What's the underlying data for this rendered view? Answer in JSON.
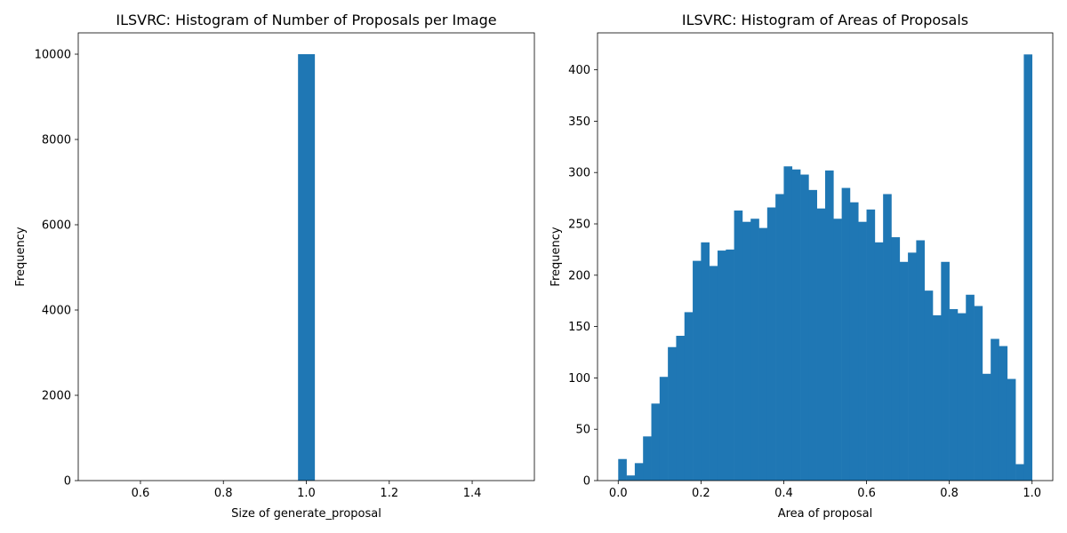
{
  "colors": {
    "bar": "#1f77b4",
    "axis": "#000000"
  },
  "chart_data": [
    {
      "type": "bar",
      "title": "ILSVRC: Histogram of Number of Proposals per Image",
      "xlabel": "Size of generate_proposal",
      "ylabel": "Frequency",
      "xlim": [
        0.45,
        1.55
      ],
      "ylim": [
        0,
        10500
      ],
      "xticks": [
        "0.6",
        "0.8",
        "1.0",
        "1.2",
        "1.4"
      ],
      "xtick_values": [
        0.6,
        0.8,
        1.0,
        1.2,
        1.4
      ],
      "yticks": [
        "0",
        "2000",
        "4000",
        "6000",
        "8000",
        "10000"
      ],
      "ytick_values": [
        0,
        2000,
        4000,
        6000,
        8000,
        10000
      ],
      "bins": [
        [
          0.98,
          1.02
        ]
      ],
      "values": [
        10000
      ],
      "grid": false
    },
    {
      "type": "bar",
      "title": "ILSVRC: Histogram of Areas of Proposals",
      "xlabel": "Area of proposal",
      "ylabel": "Frequency",
      "xlim": [
        -0.05,
        1.05
      ],
      "ylim": [
        0,
        436
      ],
      "xticks": [
        "0.0",
        "0.2",
        "0.4",
        "0.6",
        "0.8",
        "1.0"
      ],
      "xtick_values": [
        0.0,
        0.2,
        0.4,
        0.6,
        0.8,
        1.0
      ],
      "yticks": [
        "0",
        "50",
        "100",
        "150",
        "200",
        "250",
        "300",
        "350",
        "400"
      ],
      "ytick_values": [
        0,
        50,
        100,
        150,
        200,
        250,
        300,
        350,
        400
      ],
      "bin_start": 0.0,
      "bin_width": 0.02,
      "values": [
        21,
        5,
        17,
        43,
        75,
        101,
        130,
        141,
        164,
        214,
        232,
        209,
        224,
        225,
        263,
        252,
        255,
        246,
        266,
        279,
        306,
        303,
        298,
        283,
        265,
        302,
        255,
        285,
        271,
        252,
        264,
        232,
        279,
        237,
        213,
        222,
        234,
        185,
        161,
        213,
        167,
        163,
        181,
        170,
        104,
        138,
        131,
        99,
        16,
        415
      ],
      "grid": false
    }
  ]
}
